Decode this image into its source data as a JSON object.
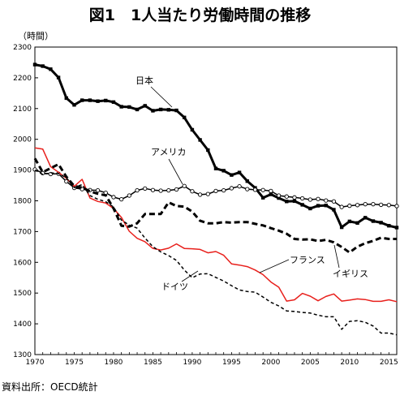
{
  "title": "図1　1人当たり労働時間の推移",
  "source": "資料出所：OECD統計",
  "chart_data": {
    "type": "line",
    "ylabel": "（時間）",
    "xlabel": "",
    "xlim": [
      1970,
      2016
    ],
    "ylim": [
      1300,
      2300
    ],
    "yticks": [
      1300,
      1400,
      1500,
      1600,
      1700,
      1800,
      1900,
      2000,
      2100,
      2200,
      2300
    ],
    "xticks": [
      1970,
      1975,
      1980,
      1985,
      1990,
      1995,
      2000,
      2005,
      2010,
      2015
    ],
    "grid": false,
    "x": [
      1970,
      1971,
      1972,
      1973,
      1974,
      1975,
      1976,
      1977,
      1978,
      1979,
      1980,
      1981,
      1982,
      1983,
      1984,
      1985,
      1986,
      1987,
      1988,
      1989,
      1990,
      1991,
      1992,
      1993,
      1994,
      1995,
      1996,
      1997,
      1998,
      1999,
      2000,
      2001,
      2002,
      2003,
      2004,
      2005,
      2006,
      2007,
      2008,
      2009,
      2010,
      2011,
      2012,
      2013,
      2014,
      2015,
      2016
    ],
    "series": [
      {
        "name": "日本",
        "color": "#000000",
        "style": "solid-square",
        "values": [
          2243,
          2238,
          2228,
          2201,
          2134,
          2112,
          2127,
          2127,
          2124,
          2126,
          2121,
          2106,
          2105,
          2097,
          2109,
          2093,
          2097,
          2096,
          2094,
          2071,
          2031,
          1998,
          1965,
          1905,
          1898,
          1884,
          1892,
          1864,
          1842,
          1810,
          1821,
          1809,
          1798,
          1799,
          1787,
          1775,
          1784,
          1785,
          1771,
          1714,
          1733,
          1728,
          1745,
          1734,
          1729,
          1719,
          1713
        ]
      },
      {
        "name": "アメリカ",
        "color": "#000000",
        "style": "solid-circle",
        "values": [
          1902,
          1890,
          1887,
          1888,
          1863,
          1842,
          1838,
          1835,
          1834,
          1826,
          1812,
          1805,
          1817,
          1834,
          1840,
          1835,
          1833,
          1834,
          1837,
          1848,
          1831,
          1820,
          1822,
          1832,
          1834,
          1841,
          1847,
          1838,
          1836,
          1835,
          1832,
          1817,
          1814,
          1811,
          1808,
          1804,
          1806,
          1801,
          1798,
          1780,
          1784,
          1786,
          1789,
          1789,
          1787,
          1786,
          1783
        ]
      },
      {
        "name": "フランス",
        "color": "#e8201c",
        "style": "solid",
        "values": [
          1972,
          1968,
          1911,
          1893,
          1873,
          1847,
          1870,
          1809,
          1798,
          1793,
          1775,
          1746,
          1701,
          1678,
          1667,
          1645,
          1640,
          1646,
          1660,
          1645,
          1644,
          1642,
          1631,
          1635,
          1623,
          1595,
          1591,
          1586,
          1575,
          1560,
          1536,
          1519,
          1474,
          1478,
          1499,
          1490,
          1475,
          1489,
          1497,
          1474,
          1477,
          1481,
          1479,
          1473,
          1473,
          1478,
          1472
        ]
      },
      {
        "name": "イギリス",
        "color": "#000000",
        "style": "dashed-thick",
        "values": [
          1938,
          1893,
          1906,
          1919,
          1878,
          1848,
          1843,
          1831,
          1823,
          1818,
          1775,
          1719,
          1716,
          1727,
          1757,
          1757,
          1757,
          1795,
          1783,
          1781,
          1765,
          1735,
          1727,
          1727,
          1731,
          1729,
          1731,
          1731,
          1725,
          1720,
          1711,
          1703,
          1693,
          1676,
          1674,
          1675,
          1669,
          1673,
          1665,
          1650,
          1632,
          1651,
          1662,
          1670,
          1680,
          1676,
          1676
        ]
      },
      {
        "name": "ドイツ",
        "color": "#000000",
        "style": "dashed-thin",
        "values": [
          1900,
          1886,
          1891,
          1889,
          1875,
          1843,
          1853,
          1817,
          1805,
          1797,
          1780,
          1737,
          1721,
          1711,
          1679,
          1651,
          1634,
          1622,
          1606,
          1575,
          1550,
          1562,
          1563,
          1551,
          1539,
          1524,
          1510,
          1505,
          1503,
          1487,
          1470,
          1458,
          1442,
          1440,
          1437,
          1435,
          1428,
          1423,
          1423,
          1382,
          1408,
          1410,
          1405,
          1393,
          1370,
          1370,
          1364
        ]
      }
    ]
  }
}
